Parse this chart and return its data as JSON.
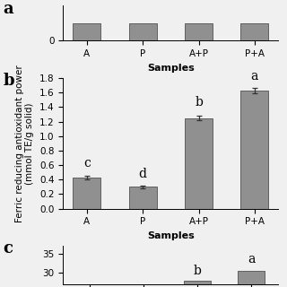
{
  "categories": [
    "A",
    "P",
    "A+P",
    "P+A"
  ],
  "values": [
    0.43,
    0.3,
    1.25,
    1.63
  ],
  "errors": [
    0.025,
    0.015,
    0.035,
    0.035
  ],
  "bar_color": "#909090",
  "bar_edge_color": "#505050",
  "panel_label": "b",
  "panel_a_label": "a",
  "panel_c_label": "c",
  "xlabel": "Samples",
  "ylabel_line1": "Ferric reducing antioxidant power",
  "ylabel_line2": "(mmol TE/g solid)",
  "ylim": [
    0,
    1.8
  ],
  "yticks": [
    0,
    0.2,
    0.4,
    0.6,
    0.8,
    1.0,
    1.2,
    1.4,
    1.6,
    1.8
  ],
  "significance_labels": [
    "c",
    "d",
    "b",
    "a"
  ],
  "sig_offsets": [
    0.09,
    0.07,
    0.09,
    0.08
  ],
  "background_color": "#f0f0f0",
  "bar_width": 0.5,
  "title_fontsize": 13,
  "axis_fontsize": 8,
  "tick_fontsize": 7.5,
  "sig_fontsize": 10,
  "panel_a_values": [
    1.0,
    1.0,
    1.0,
    1.0
  ],
  "panel_a_ylim": [
    0,
    2
  ],
  "panel_a_ytick2": 0,
  "panel_c_yticks": [
    30,
    35
  ],
  "panel_c_values_c": [
    27,
    30
  ],
  "panel_c_ylim": [
    27,
    37
  ]
}
